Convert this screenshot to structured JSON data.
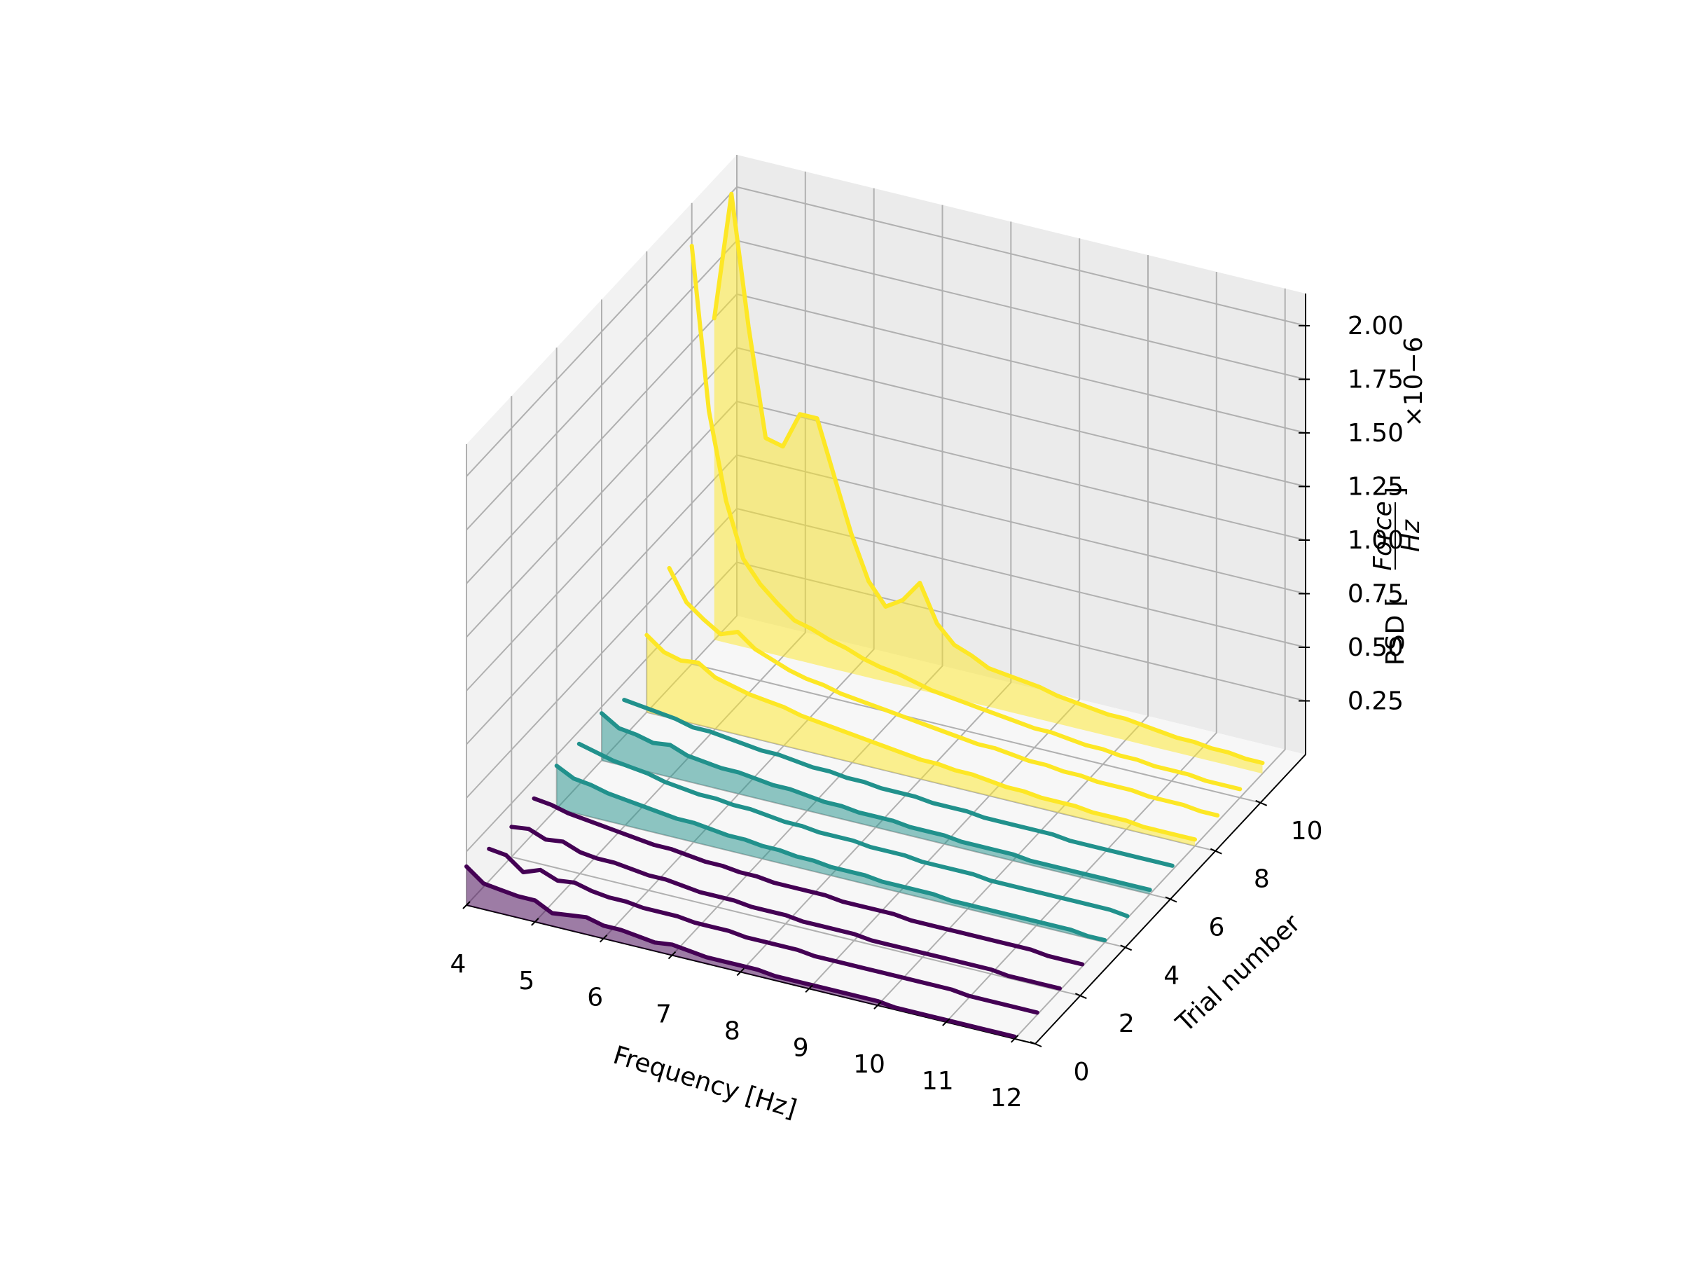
{
  "chart_data": {
    "type": "3d-line-waterfall",
    "xlabel": "Frequency [Hz]",
    "ylabel": "Trial number",
    "zlabel_prefix": "PSD [",
    "zlabel_frac_num": "Force",
    "zlabel_frac_den": "Hz",
    "zlabel_suffix": "]",
    "z_multiplier": "×10−6",
    "xlim": [
      4,
      12.3
    ],
    "ylim": [
      0,
      12
    ],
    "zlim": [
      0,
      2.15
    ],
    "x_ticks": [
      "4",
      "5",
      "6",
      "7",
      "8",
      "9",
      "10",
      "11",
      "12"
    ],
    "y_ticks": [
      "0",
      "2",
      "4",
      "6",
      "8",
      "10"
    ],
    "z_ticks": [
      "0.25",
      "0.50",
      "0.75",
      "1.00",
      "1.25",
      "1.50",
      "1.75",
      "2.00"
    ],
    "grid": true,
    "frequency": [
      4.0,
      4.25,
      4.5,
      4.75,
      5.0,
      5.25,
      5.5,
      5.75,
      6.0,
      6.25,
      6.5,
      6.75,
      7.0,
      7.25,
      7.5,
      7.75,
      8.0,
      8.25,
      8.5,
      8.75,
      9.0,
      9.25,
      9.5,
      9.75,
      10.0,
      10.25,
      10.5,
      10.75,
      11.0,
      11.25,
      11.5,
      11.75,
      12.0
    ],
    "series": [
      {
        "trial": 0,
        "color": "#440154",
        "filled": true,
        "values": [
          0.18,
          0.12,
          0.11,
          0.1,
          0.1,
          0.06,
          0.07,
          0.08,
          0.06,
          0.06,
          0.05,
          0.04,
          0.05,
          0.04,
          0.03,
          0.03,
          0.03,
          0.03,
          0.02,
          0.02,
          0.02,
          0.02,
          0.02,
          0.02,
          0.02,
          0.01,
          0.01,
          0.01,
          0.01,
          0.01,
          0.01,
          0.01,
          0.01
        ]
      },
      {
        "trial": 1,
        "color": "#440154",
        "filled": false,
        "values": [
          0.15,
          0.14,
          0.08,
          0.11,
          0.08,
          0.09,
          0.07,
          0.06,
          0.06,
          0.05,
          0.05,
          0.05,
          0.04,
          0.04,
          0.04,
          0.03,
          0.03,
          0.03,
          0.03,
          0.02,
          0.02,
          0.02,
          0.02,
          0.02,
          0.02,
          0.02,
          0.02,
          0.02,
          0.01,
          0.01,
          0.01,
          0.01,
          0.01
        ]
      },
      {
        "trial": 2,
        "color": "#440154",
        "filled": false,
        "values": [
          0.14,
          0.15,
          0.12,
          0.13,
          0.1,
          0.09,
          0.09,
          0.08,
          0.07,
          0.07,
          0.06,
          0.05,
          0.05,
          0.05,
          0.04,
          0.04,
          0.04,
          0.03,
          0.03,
          0.03,
          0.03,
          0.02,
          0.02,
          0.02,
          0.02,
          0.02,
          0.02,
          0.02,
          0.02,
          0.01,
          0.01,
          0.01,
          0.01
        ]
      },
      {
        "trial": 3,
        "color": "#440154",
        "filled": false,
        "values": [
          0.16,
          0.15,
          0.13,
          0.12,
          0.11,
          0.1,
          0.09,
          0.08,
          0.08,
          0.07,
          0.06,
          0.06,
          0.05,
          0.05,
          0.04,
          0.04,
          0.04,
          0.04,
          0.03,
          0.03,
          0.03,
          0.03,
          0.02,
          0.02,
          0.02,
          0.02,
          0.02,
          0.02,
          0.02,
          0.02,
          0.01,
          0.01,
          0.01
        ]
      },
      {
        "trial": 4,
        "color": "#21918c",
        "filled": true,
        "values": [
          0.2,
          0.16,
          0.15,
          0.13,
          0.12,
          0.11,
          0.1,
          0.09,
          0.09,
          0.08,
          0.07,
          0.07,
          0.06,
          0.06,
          0.05,
          0.05,
          0.04,
          0.04,
          0.04,
          0.03,
          0.03,
          0.03,
          0.03,
          0.02,
          0.02,
          0.02,
          0.02,
          0.02,
          0.02,
          0.02,
          0.02,
          0.01,
          0.01
        ]
      },
      {
        "trial": 5,
        "color": "#21918c",
        "filled": false,
        "values": [
          0.19,
          0.17,
          0.15,
          0.14,
          0.13,
          0.11,
          0.1,
          0.09,
          0.09,
          0.08,
          0.08,
          0.07,
          0.06,
          0.06,
          0.05,
          0.05,
          0.05,
          0.04,
          0.04,
          0.04,
          0.03,
          0.03,
          0.03,
          0.03,
          0.02,
          0.02,
          0.02,
          0.02,
          0.02,
          0.02,
          0.02,
          0.02,
          0.01
        ]
      },
      {
        "trial": 6,
        "color": "#21918c",
        "filled": true,
        "values": [
          0.22,
          0.17,
          0.16,
          0.14,
          0.15,
          0.12,
          0.11,
          0.1,
          0.1,
          0.09,
          0.08,
          0.08,
          0.07,
          0.06,
          0.06,
          0.05,
          0.05,
          0.05,
          0.04,
          0.04,
          0.04,
          0.03,
          0.03,
          0.03,
          0.03,
          0.02,
          0.02,
          0.02,
          0.02,
          0.02,
          0.02,
          0.02,
          0.02
        ]
      },
      {
        "trial": 7,
        "color": "#21918c",
        "filled": false,
        "values": [
          0.17,
          0.16,
          0.15,
          0.14,
          0.12,
          0.12,
          0.11,
          0.1,
          0.09,
          0.09,
          0.08,
          0.07,
          0.07,
          0.06,
          0.06,
          0.05,
          0.05,
          0.05,
          0.04,
          0.04,
          0.04,
          0.03,
          0.03,
          0.03,
          0.03,
          0.03,
          0.02,
          0.02,
          0.02,
          0.02,
          0.02,
          0.02,
          0.02
        ]
      },
      {
        "trial": 8,
        "color": "#fde725",
        "filled": true,
        "values": [
          0.36,
          0.3,
          0.28,
          0.29,
          0.24,
          0.22,
          0.2,
          0.19,
          0.18,
          0.16,
          0.15,
          0.14,
          0.13,
          0.12,
          0.11,
          0.1,
          0.09,
          0.09,
          0.08,
          0.08,
          0.07,
          0.06,
          0.06,
          0.05,
          0.05,
          0.05,
          0.04,
          0.04,
          0.04,
          0.03,
          0.03,
          0.03,
          0.03
        ]
      },
      {
        "trial": 9,
        "color": "#fde725",
        "filled": false,
        "values": [
          0.56,
          0.42,
          0.36,
          0.31,
          0.34,
          0.28,
          0.25,
          0.22,
          0.2,
          0.19,
          0.17,
          0.16,
          0.15,
          0.14,
          0.13,
          0.12,
          0.11,
          0.1,
          0.09,
          0.09,
          0.08,
          0.07,
          0.07,
          0.06,
          0.06,
          0.05,
          0.05,
          0.05,
          0.04,
          0.04,
          0.04,
          0.03,
          0.03
        ]
      },
      {
        "trial": 10,
        "color": "#fde725",
        "filled": false,
        "values": [
          1.95,
          1.2,
          0.8,
          0.55,
          0.45,
          0.38,
          0.32,
          0.3,
          0.27,
          0.25,
          0.22,
          0.2,
          0.19,
          0.17,
          0.15,
          0.14,
          0.13,
          0.12,
          0.11,
          0.1,
          0.09,
          0.09,
          0.08,
          0.07,
          0.07,
          0.06,
          0.06,
          0.05,
          0.05,
          0.05,
          0.04,
          0.04,
          0.04
        ]
      },
      {
        "trial": 11,
        "color": "#fde725",
        "filled": true,
        "values": [
          1.5,
          2.1,
          1.5,
          1.0,
          0.98,
          1.15,
          1.15,
          0.9,
          0.65,
          0.45,
          0.35,
          0.4,
          0.5,
          0.33,
          0.25,
          0.22,
          0.18,
          0.17,
          0.16,
          0.15,
          0.13,
          0.12,
          0.11,
          0.1,
          0.1,
          0.09,
          0.08,
          0.07,
          0.07,
          0.06,
          0.06,
          0.05,
          0.05
        ]
      }
    ]
  }
}
